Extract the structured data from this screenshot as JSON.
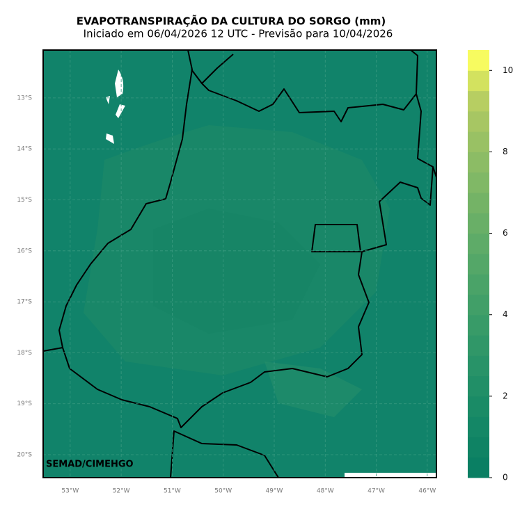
{
  "title": "EVAPOTRANSPIRAÇÃO DA CULTURA DO SORGO (mm)",
  "subtitle": "Iniciado em 06/04/2026 12 UTC - Previsão para 10/04/2026",
  "credit": "SEMAD/CIMEHGO",
  "map": {
    "lonlim": [
      -53.53,
      -45.82
    ],
    "latlim": [
      -20.45,
      -12.06
    ],
    "lon_ticks": [
      {
        "value": -53,
        "label": "53°W"
      },
      {
        "value": -52,
        "label": "52°W"
      },
      {
        "value": -51,
        "label": "51°W"
      },
      {
        "value": -50,
        "label": "50°W"
      },
      {
        "value": -49,
        "label": "49°W"
      },
      {
        "value": -48,
        "label": "48°W"
      },
      {
        "value": -47,
        "label": "47°W"
      },
      {
        "value": -46,
        "label": "46°W"
      }
    ],
    "lat_ticks": [
      {
        "value": -13,
        "label": "13°S"
      },
      {
        "value": -14,
        "label": "14°S"
      },
      {
        "value": -15,
        "label": "15°S"
      },
      {
        "value": -16,
        "label": "16°S"
      },
      {
        "value": -17,
        "label": "17°S"
      },
      {
        "value": -18,
        "label": "18°S"
      },
      {
        "value": -19,
        "label": "19°S"
      },
      {
        "value": -20,
        "label": "20°S"
      }
    ],
    "grid": true
  },
  "colorbar": {
    "lim": [
      0,
      10.5
    ],
    "ticks": [
      0,
      2,
      4,
      6,
      8,
      10
    ],
    "colors": [
      "#0a7f63",
      "#0f8364",
      "#148766",
      "#1a8b66",
      "#218f67",
      "#289368",
      "#309768",
      "#389b68",
      "#419f68",
      "#4aa368",
      "#54a768",
      "#5eab68",
      "#69af67",
      "#74b366",
      "#80b866",
      "#8cbc65",
      "#99c164",
      "#a7c663",
      "#b7ce62",
      "#d3e25f",
      "#f7fb60"
    ]
  }
}
